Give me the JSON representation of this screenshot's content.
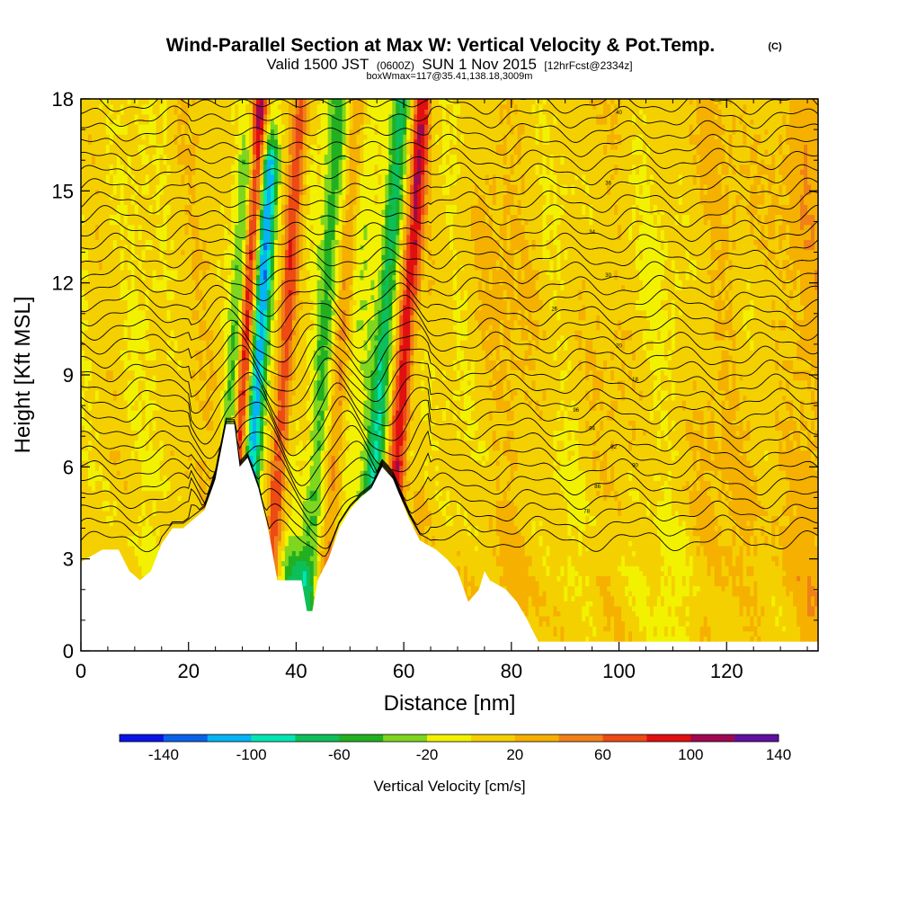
{
  "chart_data": {
    "type": "heatmap",
    "title": "Wind-Parallel Section at Max W: Vertical Velocity & Pot.Temp.",
    "title_mark": "(C)",
    "subtitle_parts": [
      "Valid 1500 JST",
      "(0600Z)",
      "SUN 1 Nov 2015",
      "[12hrFcst@2334z]"
    ],
    "subtitle2": "boxWmax=117@35.41,138.18,3009m",
    "xlabel": "Distance [nm]",
    "ylabel": "Height [Kft MSL]",
    "xlim": [
      0,
      137
    ],
    "ylim": [
      0,
      18
    ],
    "x_ticks": [
      "0",
      "20",
      "40",
      "60",
      "80",
      "100",
      "120"
    ],
    "y_ticks": [
      "0",
      "3",
      "6",
      "9",
      "12",
      "15",
      "18"
    ],
    "colorbar": {
      "title": "Vertical Velocity [cm/s]",
      "tick_labels": [
        "-140",
        "-100",
        "-60",
        "-20",
        "20",
        "60",
        "100",
        "140"
      ],
      "colors": [
        "#0a14e6",
        "#0b62ea",
        "#05b4f4",
        "#00e6b4",
        "#0cbf5a",
        "#22b022",
        "#7ed61e",
        "#f2f200",
        "#f5d000",
        "#f5b000",
        "#f08018",
        "#ee4a14",
        "#e01010",
        "#a00850",
        "#6010a0"
      ]
    },
    "terrain_top_kft": [
      [
        0,
        2.9
      ],
      [
        4,
        3.3
      ],
      [
        7,
        3.3
      ],
      [
        9,
        2.6
      ],
      [
        11,
        2.3
      ],
      [
        13,
        2.6
      ],
      [
        15,
        3.5
      ],
      [
        17,
        4.0
      ],
      [
        19,
        4.0
      ],
      [
        21,
        4.3
      ],
      [
        23,
        4.6
      ],
      [
        25,
        5.6
      ],
      [
        27,
        7.4
      ],
      [
        28.5,
        7.4
      ],
      [
        29.5,
        6.0
      ],
      [
        31,
        6.3
      ],
      [
        33,
        5.3
      ],
      [
        35,
        3.8
      ],
      [
        36.5,
        2.3
      ],
      [
        39,
        2.3
      ],
      [
        41,
        2.3
      ],
      [
        42,
        1.3
      ],
      [
        43,
        1.3
      ],
      [
        44,
        2.3
      ],
      [
        46,
        3.0
      ],
      [
        48,
        4.0
      ],
      [
        50,
        4.6
      ],
      [
        52,
        5.0
      ],
      [
        54,
        5.3
      ],
      [
        56,
        6.0
      ],
      [
        58,
        5.6
      ],
      [
        61,
        4.3
      ],
      [
        63,
        3.6
      ],
      [
        66,
        3.3
      ],
      [
        68,
        3.0
      ],
      [
        70,
        2.6
      ],
      [
        72,
        1.6
      ],
      [
        74,
        2.0
      ],
      [
        75,
        2.6
      ],
      [
        76,
        2.3
      ],
      [
        79,
        2.0
      ],
      [
        81,
        1.6
      ],
      [
        83,
        1.0
      ],
      [
        85,
        0.3
      ],
      [
        137,
        0.3
      ]
    ],
    "velocity_features_cm_s": [
      {
        "x": 29.5,
        "top_kft": 18,
        "value": 120
      },
      {
        "x": 28.0,
        "top_kft": 16,
        "value": -70
      },
      {
        "x": 32.0,
        "top_kft": 16,
        "value": -120
      },
      {
        "x": 37.0,
        "top_kft": 18,
        "value": 70
      },
      {
        "x": 44.0,
        "top_kft": 18,
        "value": -40
      },
      {
        "x": 47.5,
        "top_kft": 18,
        "value": 50
      },
      {
        "x": 55.0,
        "top_kft": 18,
        "value": -70
      },
      {
        "x": 59.0,
        "top_kft": 18,
        "value": 90
      },
      {
        "x": 40.0,
        "top_kft": 3,
        "value": -60
      }
    ],
    "isentrope_labels": [
      {
        "x": 100,
        "y_kft": 17.5,
        "text": "40"
      },
      {
        "x": 98,
        "y_kft": 15.2,
        "text": "36"
      },
      {
        "x": 95,
        "y_kft": 13.6,
        "text": "34"
      },
      {
        "x": 98,
        "y_kft": 12.2,
        "text": "30"
      },
      {
        "x": 88,
        "y_kft": 11.1,
        "text": "26"
      },
      {
        "x": 100,
        "y_kft": 9.9,
        "text": "20"
      },
      {
        "x": 103,
        "y_kft": 8.8,
        "text": "18"
      },
      {
        "x": 92,
        "y_kft": 7.8,
        "text": "96"
      },
      {
        "x": 95,
        "y_kft": 7.2,
        "text": "94"
      },
      {
        "x": 99,
        "y_kft": 6.6,
        "text": "92"
      },
      {
        "x": 103,
        "y_kft": 6.0,
        "text": "90"
      },
      {
        "x": 96,
        "y_kft": 5.3,
        "text": "86"
      },
      {
        "x": 94,
        "y_kft": 4.5,
        "text": "78"
      }
    ]
  }
}
